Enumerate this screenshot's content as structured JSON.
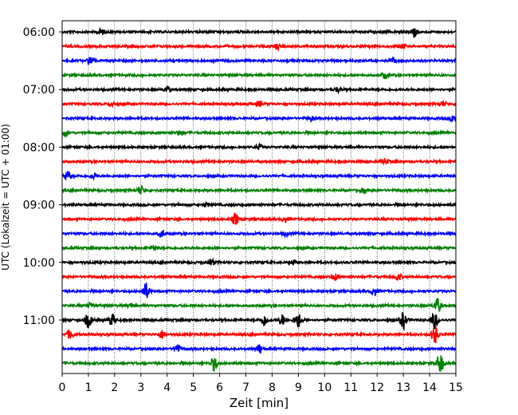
{
  "chart_data": {
    "type": "line",
    "xlabel": "Zeit  [min]",
    "ylabel": "UTC (Lokalzeit = UTC + 01:00)",
    "xlim": [
      0,
      15
    ],
    "x_ticks": [
      "0",
      "1",
      "2",
      "3",
      "4",
      "5",
      "6",
      "7",
      "8",
      "9",
      "10",
      "11",
      "12",
      "13",
      "14",
      "15"
    ],
    "y_ticks": [
      "06:00",
      "07:00",
      "08:00",
      "09:00",
      "10:00",
      "11:00"
    ],
    "grid": "vertical dotted lines at each minute",
    "row_interval_minutes": 15,
    "colors": [
      "#000000",
      "#ff0000",
      "#0000ff",
      "#008000"
    ],
    "traces": [
      {
        "label": "06:00",
        "events": [
          [
            1.5,
            0.35
          ],
          [
            13.4,
            0.75
          ]
        ]
      },
      {
        "label": "06:15",
        "events": [
          [
            8.2,
            0.4
          ],
          [
            13.0,
            0.25
          ]
        ]
      },
      {
        "label": "06:30",
        "events": [
          [
            1.1,
            0.7
          ],
          [
            12.6,
            0.3
          ]
        ]
      },
      {
        "label": "06:45",
        "events": [
          [
            12.3,
            0.4
          ]
        ]
      },
      {
        "label": "07:00",
        "events": [
          [
            4.0,
            0.4
          ],
          [
            10.5,
            0.3
          ]
        ]
      },
      {
        "label": "07:15",
        "events": [
          [
            1.9,
            0.3
          ],
          [
            7.5,
            0.35
          ],
          [
            14.5,
            0.35
          ]
        ]
      },
      {
        "label": "07:30",
        "events": [
          [
            9.5,
            0.3
          ],
          [
            14.9,
            0.45
          ]
        ]
      },
      {
        "label": "07:45",
        "events": [
          [
            0.1,
            0.4
          ],
          [
            4.5,
            0.3
          ]
        ]
      },
      {
        "label": "08:00",
        "events": [
          [
            7.5,
            0.3
          ]
        ]
      },
      {
        "label": "08:15",
        "events": [
          [
            12.3,
            0.35
          ]
        ]
      },
      {
        "label": "08:30",
        "events": [
          [
            0.2,
            0.6
          ],
          [
            1.2,
            0.4
          ]
        ]
      },
      {
        "label": "08:45",
        "events": [
          [
            3.0,
            0.6
          ],
          [
            11.5,
            0.25
          ]
        ]
      },
      {
        "label": "09:00",
        "events": [
          [
            5.5,
            0.25
          ]
        ]
      },
      {
        "label": "09:15",
        "events": [
          [
            6.6,
            0.75
          ],
          [
            8.5,
            0.3
          ]
        ]
      },
      {
        "label": "09:30",
        "events": [
          [
            3.8,
            0.45
          ],
          [
            8.5,
            0.25
          ]
        ]
      },
      {
        "label": "09:45",
        "events": [
          [
            3.5,
            0.25
          ]
        ]
      },
      {
        "label": "10:00",
        "events": [
          [
            5.7,
            0.4
          ],
          [
            8.8,
            0.25
          ]
        ]
      },
      {
        "label": "10:15",
        "events": [
          [
            10.4,
            0.45
          ],
          [
            12.8,
            0.45
          ]
        ]
      },
      {
        "label": "10:30",
        "events": [
          [
            3.2,
            1.1
          ],
          [
            11.9,
            0.5
          ]
        ]
      },
      {
        "label": "10:45",
        "events": [
          [
            1.1,
            0.4
          ],
          [
            2.6,
            0.3
          ],
          [
            14.3,
            1.0
          ]
        ]
      },
      {
        "label": "11:00",
        "events": [
          [
            1.0,
            1.0
          ],
          [
            1.9,
            0.8
          ],
          [
            7.7,
            0.8
          ],
          [
            8.4,
            0.7
          ],
          [
            9.0,
            1.0
          ],
          [
            13.0,
            1.1
          ],
          [
            14.2,
            1.2
          ]
        ]
      },
      {
        "label": "11:15",
        "events": [
          [
            0.3,
            0.6
          ],
          [
            3.8,
            0.55
          ],
          [
            14.2,
            1.2
          ]
        ]
      },
      {
        "label": "11:30",
        "events": [
          [
            4.4,
            0.55
          ],
          [
            7.5,
            0.6
          ]
        ]
      },
      {
        "label": "11:45",
        "events": [
          [
            5.8,
            1.0
          ],
          [
            14.4,
            1.4
          ]
        ]
      }
    ]
  }
}
